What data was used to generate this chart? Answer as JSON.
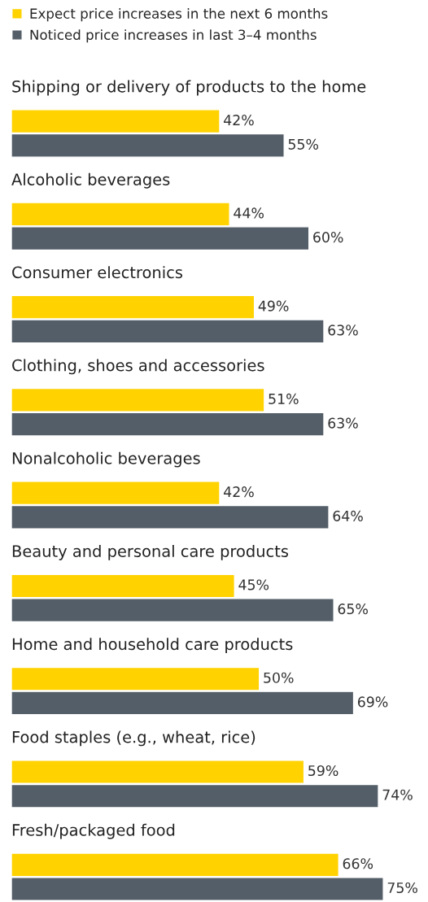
{
  "chart_data": {
    "type": "bar",
    "orientation": "horizontal",
    "legend": "top left",
    "categories": [
      "Shipping or delivery of products to the home",
      "Alcoholic beverages",
      "Consumer electronics",
      "Clothing, shoes and accessories",
      "Nonalcoholic beverages",
      "Beauty and personal care products",
      "Home and household care products",
      "Food staples (e.g., wheat, rice)",
      "Fresh/packaged food"
    ],
    "series": [
      {
        "name": "Expect price increases in the next 6 months",
        "color": "#ffd200",
        "values": [
          42,
          44,
          49,
          51,
          42,
          45,
          50,
          59,
          66
        ],
        "value_labels": [
          "42%",
          "44%",
          "49%",
          "51%",
          "42%",
          "45%",
          "50%",
          "59%",
          "66%"
        ]
      },
      {
        "name": "Noticed price increases in last 3–4 months",
        "color": "#545e68",
        "values": [
          55,
          60,
          63,
          63,
          64,
          65,
          69,
          74,
          75
        ],
        "value_labels": [
          "55%",
          "60%",
          "63%",
          "63%",
          "64%",
          "65%",
          "69%",
          "74%",
          "75%"
        ]
      }
    ]
  }
}
